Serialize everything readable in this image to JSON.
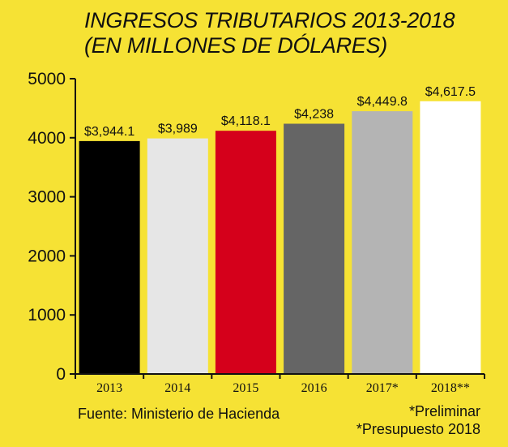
{
  "chart_data": {
    "type": "bar",
    "title_line1": "INGRESOS TRIBUTARIOS 2013-2018",
    "title_line2": "(EN MILLONES DE DÓLARES)",
    "categories": [
      "2013",
      "2014",
      "2015",
      "2016",
      "2017*",
      "2018**"
    ],
    "values": [
      3944.1,
      3989,
      4118.1,
      4238,
      4449.8,
      4617.5
    ],
    "data_labels": [
      "$3,944.1",
      "$3,989",
      "$4,118.1",
      "$4,238",
      "$4,449.8",
      "$4,617.5"
    ],
    "colors": [
      "#000000",
      "#e6e6e6",
      "#d5001b",
      "#656565",
      "#b4b4b4",
      "#ffffff"
    ],
    "ylim": [
      0,
      5000
    ],
    "yticks": [
      0,
      1000,
      2000,
      3000,
      4000,
      5000
    ],
    "grid": false,
    "xlabel": "",
    "ylabel": ""
  },
  "source": "Fuente: Ministerio de Hacienda",
  "notes": [
    "*Preliminar",
    "*Presupuesto 2018"
  ]
}
